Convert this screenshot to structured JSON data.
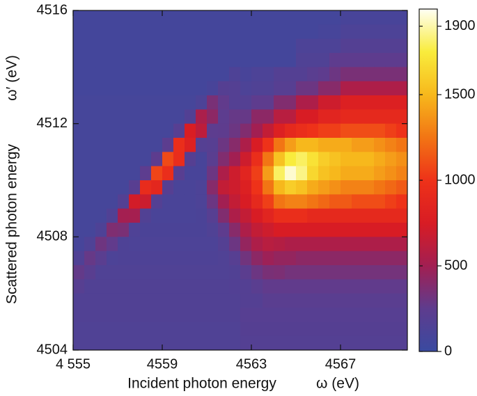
{
  "chart_data": {
    "type": "heatmap",
    "xlabel": "Incident photon energy",
    "xunit": "ω (eV)",
    "ylabel": "Scattered photon energy",
    "yunit": "ω′ (eV)",
    "xlim": [
      4555,
      4570
    ],
    "ylim": [
      4504,
      4516
    ],
    "xticks": [
      {
        "value": 4555,
        "label": "4 555"
      },
      4559,
      4563,
      4567
    ],
    "yticks": [
      4504,
      4508,
      4512,
      4516
    ],
    "zlim": [
      0,
      2000
    ],
    "zticks": [
      0,
      500,
      1000,
      1500,
      1900
    ],
    "colorscale": [
      [
        0,
        "#3a4aa0"
      ],
      [
        250,
        "#5e3c8e"
      ],
      [
        500,
        "#a21f52"
      ],
      [
        750,
        "#d81c24"
      ],
      [
        1000,
        "#ee3219"
      ],
      [
        1250,
        "#f27514"
      ],
      [
        1500,
        "#f7b81c"
      ],
      [
        1750,
        "#f9ec3c"
      ],
      [
        2000,
        "#fffff4"
      ]
    ],
    "x": [
      4555.25,
      4555.75,
      4556.25,
      4556.75,
      4557.25,
      4557.75,
      4558.25,
      4558.75,
      4559.25,
      4559.75,
      4560.25,
      4560.75,
      4561.25,
      4561.75,
      4562.25,
      4562.75,
      4563.25,
      4563.75,
      4564.25,
      4564.75,
      4565.25,
      4565.75,
      4566.25,
      4566.75,
      4567.25,
      4567.75,
      4568.25,
      4568.75,
      4569.25,
      4569.75
    ],
    "y": [
      4515.75,
      4515.25,
      4514.75,
      4514.25,
      4513.75,
      4513.25,
      4512.75,
      4512.25,
      4511.75,
      4511.25,
      4510.75,
      4510.25,
      4509.75,
      4509.25,
      4508.75,
      4508.25,
      4507.75,
      4507.25,
      4506.75,
      4506.25,
      4505.75,
      4505.25,
      4504.75,
      4504.25
    ],
    "z": [
      [
        70,
        70,
        70,
        70,
        70,
        70,
        70,
        70,
        70,
        70,
        70,
        70,
        70,
        70,
        70,
        70,
        70,
        70,
        70,
        70,
        70,
        70,
        70,
        70,
        100,
        100,
        100,
        100,
        100,
        100
      ],
      [
        70,
        70,
        70,
        70,
        70,
        70,
        70,
        70,
        70,
        70,
        70,
        70,
        70,
        70,
        70,
        70,
        70,
        70,
        70,
        70,
        70,
        70,
        90,
        90,
        130,
        130,
        130,
        130,
        130,
        130
      ],
      [
        70,
        70,
        70,
        70,
        70,
        70,
        70,
        70,
        70,
        70,
        70,
        70,
        70,
        70,
        70,
        70,
        70,
        70,
        70,
        70,
        130,
        130,
        130,
        130,
        180,
        180,
        180,
        180,
        180,
        180
      ],
      [
        70,
        70,
        70,
        70,
        70,
        70,
        70,
        70,
        70,
        70,
        70,
        70,
        70,
        70,
        70,
        70,
        70,
        70,
        70,
        70,
        150,
        150,
        150,
        250,
        250,
        250,
        250,
        250,
        250,
        250
      ],
      [
        70,
        70,
        70,
        70,
        70,
        70,
        70,
        70,
        70,
        70,
        70,
        70,
        70,
        70,
        140,
        100,
        130,
        130,
        180,
        180,
        180,
        220,
        250,
        300,
        350,
        350,
        350,
        350,
        350,
        350
      ],
      [
        70,
        70,
        70,
        70,
        70,
        70,
        70,
        70,
        70,
        70,
        70,
        70,
        100,
        190,
        180,
        130,
        150,
        150,
        200,
        200,
        300,
        300,
        400,
        400,
        550,
        550,
        550,
        550,
        550,
        550
      ],
      [
        80,
        80,
        80,
        80,
        80,
        80,
        80,
        80,
        80,
        80,
        80,
        130,
        350,
        260,
        180,
        180,
        250,
        250,
        380,
        380,
        550,
        550,
        700,
        700,
        800,
        800,
        800,
        800,
        800,
        800
      ],
      [
        80,
        80,
        80,
        80,
        80,
        80,
        80,
        80,
        80,
        80,
        170,
        540,
        420,
        240,
        280,
        280,
        420,
        420,
        600,
        600,
        750,
        750,
        850,
        850,
        900,
        900,
        900,
        900,
        900,
        900
      ],
      [
        80,
        80,
        80,
        80,
        80,
        80,
        80,
        80,
        80,
        200,
        765,
        626,
        240,
        250,
        300,
        380,
        500,
        650,
        800,
        900,
        950,
        1000,
        1050,
        1050,
        1100,
        1100,
        1100,
        1100,
        1050,
        1000
      ],
      [
        80,
        80,
        80,
        80,
        80,
        80,
        80,
        80,
        235,
        950,
        810,
        185,
        200,
        300,
        400,
        550,
        750,
        1000,
        1250,
        1400,
        1500,
        1500,
        1450,
        1450,
        1450,
        1400,
        1400,
        1350,
        1300,
        1250
      ],
      [
        80,
        80,
        80,
        80,
        80,
        80,
        80,
        245,
        1090,
        940,
        190,
        100,
        220,
        380,
        500,
        700,
        950,
        1250,
        1550,
        1750,
        1800,
        1700,
        1600,
        1550,
        1500,
        1500,
        1500,
        1450,
        1400,
        1350
      ],
      [
        80,
        80,
        80,
        80,
        80,
        80,
        240,
        1070,
        950,
        210,
        100,
        100,
        300,
        550,
        700,
        850,
        1050,
        1400,
        1800,
        1950,
        1850,
        1650,
        1550,
        1500,
        1450,
        1450,
        1450,
        1400,
        1350,
        1300
      ],
      [
        80,
        80,
        80,
        80,
        80,
        210,
        935,
        880,
        195,
        110,
        110,
        130,
        400,
        650,
        700,
        800,
        1000,
        1250,
        1500,
        1600,
        1550,
        1450,
        1400,
        1350,
        1300,
        1300,
        1300,
        1250,
        1200,
        1150
      ],
      [
        80,
        80,
        80,
        80,
        178,
        726,
        690,
        180,
        110,
        110,
        110,
        130,
        300,
        500,
        650,
        750,
        900,
        1050,
        1250,
        1300,
        1300,
        1250,
        1200,
        1150,
        1150,
        1100,
        1100,
        1100,
        1050,
        1000
      ],
      [
        80,
        80,
        80,
        152,
        508,
        512,
        163,
        110,
        110,
        110,
        110,
        120,
        200,
        380,
        550,
        650,
        750,
        850,
        950,
        950,
        950,
        900,
        900,
        900,
        900,
        900,
        900,
        900,
        900,
        900
      ],
      [
        80,
        80,
        141,
        370,
        353,
        145,
        120,
        120,
        120,
        120,
        120,
        120,
        150,
        250,
        400,
        550,
        650,
        700,
        750,
        750,
        750,
        750,
        750,
        750,
        750,
        750,
        750,
        750,
        750,
        750
      ],
      [
        90,
        145,
        307,
        260,
        138,
        130,
        130,
        130,
        130,
        130,
        130,
        130,
        130,
        180,
        300,
        450,
        550,
        600,
        580,
        550,
        550,
        550,
        550,
        550,
        550,
        550,
        550,
        550,
        550,
        550
      ],
      [
        152,
        280,
        220,
        130,
        140,
        140,
        140,
        140,
        140,
        140,
        140,
        140,
        140,
        150,
        200,
        320,
        420,
        480,
        450,
        450,
        420,
        420,
        420,
        420,
        420,
        420,
        420,
        420,
        420,
        420
      ],
      [
        270,
        217,
        150,
        150,
        150,
        150,
        150,
        150,
        150,
        150,
        150,
        150,
        150,
        150,
        160,
        230,
        300,
        350,
        360,
        330,
        330,
        330,
        330,
        330,
        330,
        330,
        330,
        330,
        330,
        330
      ],
      [
        204,
        160,
        160,
        160,
        160,
        160,
        160,
        160,
        160,
        160,
        160,
        160,
        160,
        160,
        170,
        180,
        220,
        260,
        260,
        260,
        260,
        260,
        260,
        260,
        260,
        260,
        260,
        260,
        260,
        260
      ],
      [
        160,
        160,
        160,
        160,
        160,
        160,
        160,
        160,
        160,
        160,
        160,
        160,
        160,
        160,
        160,
        180,
        180,
        220,
        220,
        220,
        220,
        220,
        220,
        220,
        220,
        220,
        220,
        220,
        220,
        220
      ],
      [
        160,
        160,
        160,
        160,
        160,
        160,
        160,
        160,
        160,
        160,
        160,
        160,
        160,
        160,
        160,
        200,
        200,
        200,
        200,
        200,
        200,
        200,
        200,
        200,
        200,
        200,
        200,
        200,
        200,
        200
      ],
      [
        150,
        150,
        150,
        150,
        150,
        150,
        150,
        150,
        150,
        150,
        150,
        150,
        150,
        150,
        150,
        190,
        190,
        190,
        190,
        190,
        190,
        190,
        190,
        190,
        190,
        190,
        190,
        190,
        190,
        190
      ],
      [
        150,
        150,
        150,
        150,
        150,
        150,
        150,
        150,
        150,
        150,
        150,
        150,
        150,
        150,
        150,
        180,
        180,
        180,
        180,
        180,
        180,
        180,
        180,
        180,
        180,
        180,
        180,
        180,
        180,
        180
      ]
    ]
  }
}
